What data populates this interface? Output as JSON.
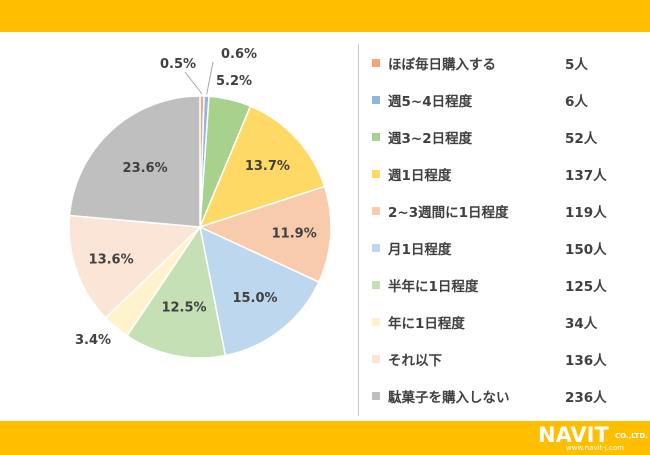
{
  "colors": {
    "banner": "#ffbf00",
    "text": "#404040"
  },
  "chart_data": {
    "type": "pie",
    "title": "",
    "categories": [
      "ほぼ毎日購入する",
      "週5~4日程度",
      "週3~2日程度",
      "週1日程度",
      "2~3週間に1日程度",
      "月1日程度",
      "半年に1日程度",
      "年に1日程度",
      "それ以下",
      "駄菓子を購入しない"
    ],
    "counts": [
      "5人",
      "6人",
      "52人",
      "137人",
      "119人",
      "150人",
      "125人",
      "34人",
      "136人",
      "236人"
    ],
    "values": [
      0.5,
      0.6,
      5.2,
      13.7,
      11.9,
      15.0,
      12.5,
      3.4,
      13.6,
      23.6
    ],
    "percent_labels": [
      "0.5%",
      "0.6%",
      "5.2%",
      "13.7%",
      "11.9%",
      "15.0%",
      "12.5%",
      "3.4%",
      "13.6%",
      "23.6%"
    ],
    "colors": [
      "#f4a57c",
      "#8fb5e0",
      "#a9d18e",
      "#ffd966",
      "#f8cbad",
      "#bdd7ee",
      "#c5e0b4",
      "#fff2cc",
      "#fbe5d6",
      "#bfbfbf"
    ],
    "legend_position": "right"
  },
  "logo": {
    "name": "NAVIT",
    "suffix": "CO.,LTD.",
    "url": "www.navit-j.com"
  }
}
